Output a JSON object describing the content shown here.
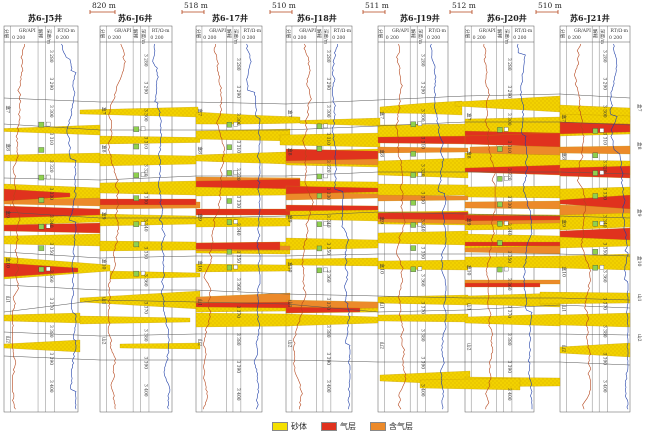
{
  "wells": [
    {
      "name": "苏6-J5井"
    },
    {
      "name": "苏6-J6井"
    },
    {
      "name": "苏6-17井"
    },
    {
      "name": "苏6-J18井"
    },
    {
      "name": "苏6-J19井"
    },
    {
      "name": "苏6-J20井"
    },
    {
      "name": "苏6-J21井"
    }
  ],
  "distances": [
    "820 m",
    "518 m",
    "510 m",
    "511 m",
    "512 m",
    "510 m"
  ],
  "track_headers": {
    "layer": "分层",
    "gr": "GR/API",
    "gr_range": "0  200",
    "interp": "解释",
    "depth": "深度/m",
    "rt": "RT/Ω·m",
    "rt_range": "0  200"
  },
  "depth_labels": [
    "3 280",
    "3 290",
    "3 300",
    "3 310",
    "3 320",
    "3 330",
    "3 340",
    "3 350",
    "3 360",
    "3 370",
    "3 380",
    "3 390",
    "3 400"
  ],
  "layer_labels": [
    "盒7",
    "盒8",
    "盒9",
    "盒10",
    "山1",
    "山2"
  ],
  "legend": [
    {
      "label": "砂体",
      "color": "#f5e000"
    },
    {
      "label": "气层",
      "color": "#e0321e"
    },
    {
      "label": "含气层",
      "color": "#ec8a2a"
    }
  ],
  "colors": {
    "sand": "#f2d200",
    "sand_dot": "#c79a00",
    "gas": "#e0321e",
    "gas_bearing": "#ec8a2a",
    "gr_curve": "#b5451b",
    "rt_curve": "#1f3fa8"
  }
}
